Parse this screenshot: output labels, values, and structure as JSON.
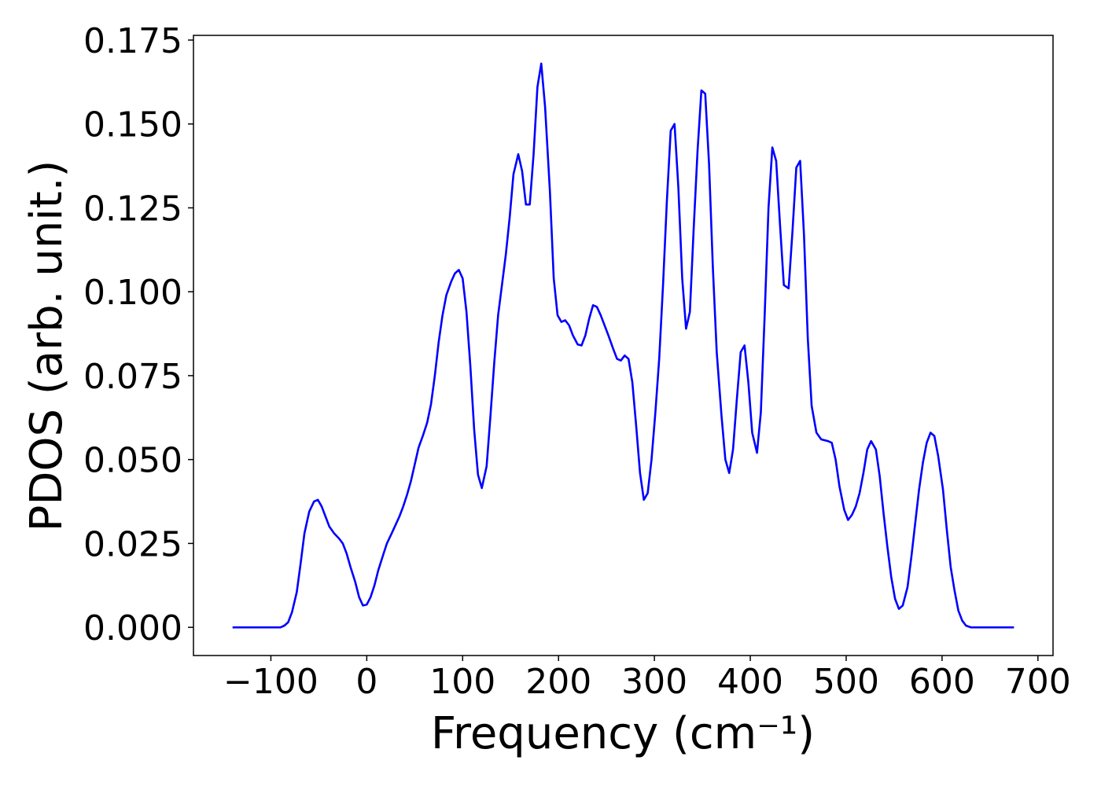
{
  "chart_data": {
    "type": "line",
    "xlabel": "Frequency (cm⁻¹)",
    "ylabel": "PDOS (arb. unit.)",
    "xlim": [
      -180.75,
      715.75
    ],
    "ylim": [
      -0.0084,
      0.1764
    ],
    "xticks": [
      {
        "value": -100,
        "label": "−100"
      },
      0,
      100,
      200,
      300,
      400,
      500,
      600,
      700
    ],
    "yticks": [
      {
        "value": 0,
        "label": "0.000"
      },
      {
        "value": 0.025,
        "label": "0.025"
      },
      {
        "value": 0.05,
        "label": "0.050"
      },
      {
        "value": 0.075,
        "label": "0.075"
      },
      {
        "value": 0.1,
        "label": "0.100"
      },
      {
        "value": 0.125,
        "label": "0.125"
      },
      {
        "value": 0.15,
        "label": "0.150"
      },
      {
        "value": 0.175,
        "label": "0.175"
      }
    ],
    "grid": false,
    "series": [
      {
        "color": "#0000ff",
        "x": [
          -140,
          -120,
          -100,
          -90,
          -86,
          -82,
          -78,
          -73,
          -69,
          -65,
          -60,
          -55,
          -51,
          -47,
          -43,
          -39,
          -34,
          -29,
          -25,
          -21,
          -17,
          -12,
          -8,
          -4,
          0,
          4,
          8,
          12,
          17,
          21,
          26,
          30,
          34,
          38,
          42,
          46,
          50,
          54,
          59,
          63,
          67,
          71,
          75,
          79,
          83,
          88,
          92,
          96,
          100,
          104,
          108,
          112,
          116,
          120,
          125,
          129,
          133,
          137,
          141,
          145,
          149,
          153,
          158,
          162,
          166,
          170,
          174,
          178,
          182,
          186,
          191,
          195,
          199,
          203,
          207,
          211,
          215,
          220,
          224,
          228,
          232,
          236,
          240,
          244,
          248,
          252,
          257,
          261,
          265,
          269,
          273,
          277,
          281,
          285,
          289,
          293,
          297,
          301,
          305,
          309,
          313,
          317,
          321,
          325,
          329,
          333,
          337,
          341,
          345,
          349,
          353,
          357,
          361,
          365,
          370,
          374,
          378,
          382,
          386,
          390,
          394,
          398,
          402,
          407,
          411,
          415,
          419,
          423,
          427,
          431,
          435,
          440,
          444,
          448,
          452,
          456,
          460,
          464,
          469,
          474,
          481,
          485,
          489,
          493,
          498,
          502,
          506,
          510,
          514,
          518,
          522,
          526,
          531,
          535,
          539,
          543,
          547,
          551,
          555,
          559,
          564,
          568,
          572,
          576,
          580,
          584,
          588,
          592,
          596,
          601,
          605,
          609,
          613,
          617,
          621,
          625,
          630,
          650,
          675
        ],
        "values": [
          0,
          0,
          0,
          0,
          0.0005,
          0.0015,
          0.0045,
          0.0105,
          0.019,
          0.028,
          0.0345,
          0.0375,
          0.038,
          0.036,
          0.033,
          0.03,
          0.028,
          0.0265,
          0.025,
          0.022,
          0.018,
          0.0135,
          0.009,
          0.0065,
          0.0068,
          0.009,
          0.0125,
          0.017,
          0.0215,
          0.025,
          0.028,
          0.0305,
          0.033,
          0.036,
          0.0395,
          0.0435,
          0.0485,
          0.0535,
          0.0575,
          0.061,
          0.0665,
          0.075,
          0.085,
          0.093,
          0.099,
          0.103,
          0.1055,
          0.1065,
          0.104,
          0.094,
          0.078,
          0.059,
          0.0455,
          0.0415,
          0.048,
          0.063,
          0.079,
          0.093,
          0.102,
          0.111,
          0.122,
          0.135,
          0.141,
          0.136,
          0.126,
          0.126,
          0.141,
          0.161,
          0.168,
          0.155,
          0.13,
          0.104,
          0.093,
          0.091,
          0.0915,
          0.09,
          0.087,
          0.0843,
          0.084,
          0.087,
          0.092,
          0.096,
          0.0955,
          0.093,
          0.09,
          0.087,
          0.083,
          0.08,
          0.0795,
          0.081,
          0.08,
          0.073,
          0.06,
          0.046,
          0.038,
          0.04,
          0.05,
          0.064,
          0.08,
          0.102,
          0.127,
          0.148,
          0.15,
          0.131,
          0.104,
          0.089,
          0.094,
          0.119,
          0.142,
          0.16,
          0.159,
          0.138,
          0.107,
          0.082,
          0.063,
          0.05,
          0.046,
          0.053,
          0.068,
          0.082,
          0.084,
          0.073,
          0.058,
          0.052,
          0.064,
          0.093,
          0.125,
          0.143,
          0.139,
          0.12,
          0.102,
          0.101,
          0.118,
          0.137,
          0.139,
          0.117,
          0.086,
          0.066,
          0.058,
          0.056,
          0.0555,
          0.055,
          0.05,
          0.042,
          0.035,
          0.032,
          0.0335,
          0.036,
          0.04,
          0.046,
          0.053,
          0.0555,
          0.053,
          0.045,
          0.034,
          0.024,
          0.015,
          0.0085,
          0.0055,
          0.0065,
          0.012,
          0.021,
          0.031,
          0.041,
          0.049,
          0.055,
          0.058,
          0.057,
          0.051,
          0.041,
          0.029,
          0.018,
          0.011,
          0.005,
          0.002,
          0.0005,
          0,
          0,
          0
        ]
      }
    ]
  }
}
